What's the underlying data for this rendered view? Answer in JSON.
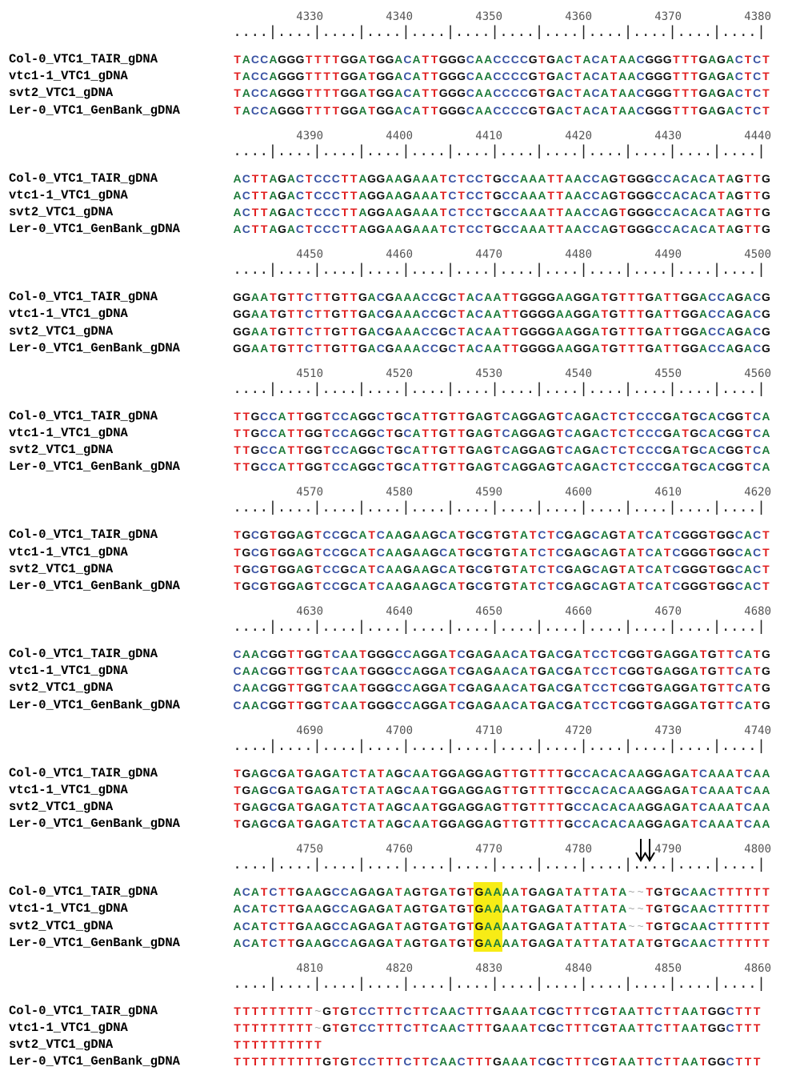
{
  "labels": [
    "Col-0_VTC1_TAIR_gDNA",
    "vtc1-1_VTC1_gDNA",
    "svt2_VTC1_gDNA",
    "Ler-0_VTC1_GenBank_gDNA"
  ],
  "ruler_text": "....|....|....|....|....|....|....|....|....|....|....|....|",
  "colors": {
    "A": "#1e7b3a",
    "C": "#3a53a4",
    "G": "#111111",
    "T": "#e11d1d",
    "~": "#aaaaaa"
  },
  "highlight_color": "#f7ec16",
  "blocks": [
    {
      "numbers": [
        "4330",
        "4340",
        "4350",
        "4360",
        "4370",
        "4380"
      ],
      "rows": [
        "TACCAGGGTTTTGGATGGACATTGGGCAACCCCGTGACTACATAACGGGTTTGAGACTCT",
        "TACCAGGGTTTTGGATGGACATTGGGCAACCCCGTGACTACATAACGGGTTTGAGACTCT",
        "TACCAGGGTTTTGGATGGACATTGGGCAACCCCGTGACTACATAACGGGTTTGAGACTCT",
        "TACCAGGGTTTTGGATGGACATTGGGCAACCCCGTGACTACATAACGGGTTTGAGACTCT"
      ]
    },
    {
      "numbers": [
        "4390",
        "4400",
        "4410",
        "4420",
        "4430",
        "4440"
      ],
      "rows": [
        "ACTTAGACTCCCTTAGGAAGAAATCTCCTGCCAAATTAACCAGTGGGCCACACATAGTTG",
        "ACTTAGACTCCCTTAGGAAGAAATCTCCTGCCAAATTAACCAGTGGGCCACACATAGTTG",
        "ACTTAGACTCCCTTAGGAAGAAATCTCCTGCCAAATTAACCAGTGGGCCACACATAGTTG",
        "ACTTAGACTCCCTTAGGAAGAAATCTCCTGCCAAATTAACCAGTGGGCCACACATAGTTG"
      ]
    },
    {
      "numbers": [
        "4450",
        "4460",
        "4470",
        "4480",
        "4490",
        "4500"
      ],
      "rows": [
        "GGAATGTTCTTGTTGACGAAACCGCTACAATTGGGGAAGGATGTTTGATTGGACCAGACG",
        "GGAATGTTCTTGTTGACGAAACCGCTACAATTGGGGAAGGATGTTTGATTGGACCAGACG",
        "GGAATGTTCTTGTTGACGAAACCGCTACAATTGGGGAAGGATGTTTGATTGGACCAGACG",
        "GGAATGTTCTTGTTGACGAAACCGCTACAATTGGGGAAGGATGTTTGATTGGACCAGACG"
      ]
    },
    {
      "numbers": [
        "4510",
        "4520",
        "4530",
        "4540",
        "4550",
        "4560"
      ],
      "rows": [
        "TTGCCATTGGTCCAGGCTGCATTGTTGAGTCAGGAGTCAGACTCTCCCGATGCACGGTCA",
        "TTGCCATTGGTCCAGGCTGCATTGTTGAGTCAGGAGTCAGACTCTCCCGATGCACGGTCA",
        "TTGCCATTGGTCCAGGCTGCATTGTTGAGTCAGGAGTCAGACTCTCCCGATGCACGGTCA",
        "TTGCCATTGGTCCAGGCTGCATTGTTGAGTCAGGAGTCAGACTCTCCCGATGCACGGTCA"
      ]
    },
    {
      "numbers": [
        "4570",
        "4580",
        "4590",
        "4600",
        "4610",
        "4620"
      ],
      "rows": [
        "TGCGTGGAGTCCGCATCAAGAAGCATGCGTGTATCTCGAGCAGTATCATCGGGTGGCACT",
        "TGCGTGGAGTCCGCATCAAGAAGCATGCGTGTATCTCGAGCAGTATCATCGGGTGGCACT",
        "TGCGTGGAGTCCGCATCAAGAAGCATGCGTGTATCTCGAGCAGTATCATCGGGTGGCACT",
        "TGCGTGGAGTCCGCATCAAGAAGCATGCGTGTATCTCGAGCAGTATCATCGGGTGGCACT"
      ]
    },
    {
      "numbers": [
        "4630",
        "4640",
        "4650",
        "4660",
        "4670",
        "4680"
      ],
      "rows": [
        "CAACGGTTGGTCAATGGGCCAGGATCGAGAACATGACGATCCTCGGTGAGGATGTTCATG",
        "CAACGGTTGGTCAATGGGCCAGGATCGAGAACATGACGATCCTCGGTGAGGATGTTCATG",
        "CAACGGTTGGTCAATGGGCCAGGATCGAGAACATGACGATCCTCGGTGAGGATGTTCATG",
        "CAACGGTTGGTCAATGGGCCAGGATCGAGAACATGACGATCCTCGGTGAGGATGTTCATG"
      ]
    },
    {
      "numbers": [
        "4690",
        "4700",
        "4710",
        "4720",
        "4730",
        "4740"
      ],
      "rows": [
        "TGAGCGATGAGATCTATAGCAATGGAGGAGTTGTTTTGCCACACAAGGAGATCAAATCAA",
        "TGAGCGATGAGATCTATAGCAATGGAGGAGTTGTTTTGCCACACAAGGAGATCAAATCAA",
        "TGAGCGATGAGATCTATAGCAATGGAGGAGTTGTTTTGCCACACAAGGAGATCAAATCAA",
        "TGAGCGATGAGATCTATAGCAATGGAGGAGTTGTTTTGCCACACAAGGAGATCAAATCAA"
      ]
    },
    {
      "numbers": [
        "4750",
        "4760",
        "4770",
        "4780",
        "4790",
        "4800"
      ],
      "rows": [
        "ACATCTTGAAGCCAGAGATAGTGATGTGAAAATGAGATATTATA~~TGTGCAACTTTTTT",
        "ACATCTTGAAGCCAGAGATAGTGATGTGAAAATGAGATATTATA~~TGTGCAACTTTTTT",
        "ACATCTTGAAGCCAGAGATAGTGATGTGAAAATGAGATATTATA~~TGTGCAACTTTTTT",
        "ACATCTTGAAGCCAGAGATAGTGATGTGAAAATGAGATATTATATATGTGCAACTTTTTT"
      ],
      "highlight": {
        "from": 27,
        "to": 29
      },
      "arrows": [
        45,
        46
      ]
    },
    {
      "numbers": [
        "4810",
        "4820",
        "4830",
        "4840",
        "4850",
        "4860"
      ],
      "rows": [
        "TTTTTTTTT~GTGTCCTTTCTTCAACTTTGAAATCGCTTTCGTAATTCTTAATGGCTTT",
        "TTTTTTTTT~GTGTCCTTTCTTCAACTTTGAAATCGCTTTCGTAATTCTTAATGGCTTT",
        "TTTTTTTTTT",
        "TTTTTTTTTTGTGTCCTTTCTTCAACTTTGAAATCGCTTTCGTAATTCTTAATGGCTTT"
      ]
    }
  ]
}
